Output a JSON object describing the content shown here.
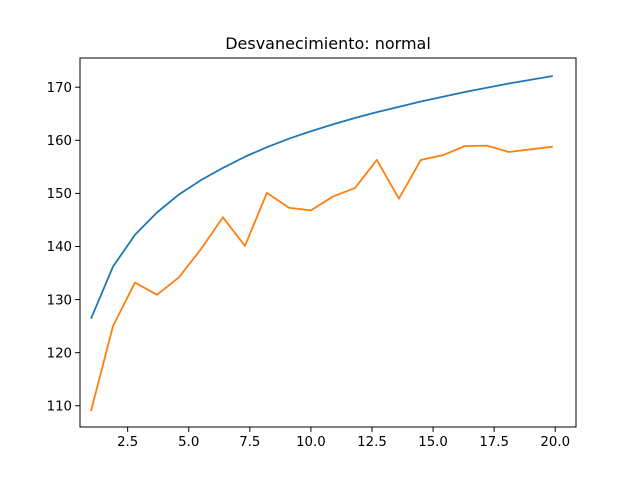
{
  "chart_data": {
    "type": "line",
    "title": "Desvanecimiento: normal",
    "xlabel": "",
    "ylabel": "",
    "xlim": [
      0.55,
      20.85
    ],
    "ylim": [
      106.0,
      175.5
    ],
    "xticks": [
      2.5,
      5.0,
      7.5,
      10.0,
      12.5,
      15.0,
      17.5,
      20.0
    ],
    "xtick_labels": [
      "2.5",
      "5.0",
      "7.5",
      "10.0",
      "12.5",
      "15.0",
      "17.5",
      "20.0"
    ],
    "yticks": [
      110,
      120,
      130,
      140,
      150,
      160,
      170
    ],
    "ytick_labels": [
      "110",
      "120",
      "130",
      "140",
      "150",
      "160",
      "170"
    ],
    "grid": false,
    "x": [
      1.0,
      1.9,
      2.8,
      3.7,
      4.6,
      5.5,
      6.4,
      7.3,
      8.2,
      9.1,
      10.0,
      10.9,
      11.8,
      12.7,
      13.6,
      14.5,
      15.4,
      16.3,
      17.2,
      18.1,
      19.0,
      19.9
    ],
    "series": [
      {
        "color": "#1f77b4",
        "values": [
          126.4,
          136.2,
          142.2,
          146.4,
          149.8,
          152.5,
          154.8,
          156.9,
          158.7,
          160.3,
          161.7,
          163.0,
          164.2,
          165.3,
          166.3,
          167.3,
          168.2,
          169.1,
          169.9,
          170.7,
          171.4,
          172.1
        ]
      },
      {
        "color": "#ff7f0e",
        "values": [
          109.0,
          125.0,
          133.2,
          130.9,
          134.2,
          139.5,
          145.5,
          140.1,
          150.1,
          147.3,
          146.8,
          149.4,
          151.0,
          156.3,
          149.0,
          156.3,
          157.2,
          158.9,
          159.0,
          157.8,
          158.3,
          158.8
        ]
      }
    ]
  }
}
